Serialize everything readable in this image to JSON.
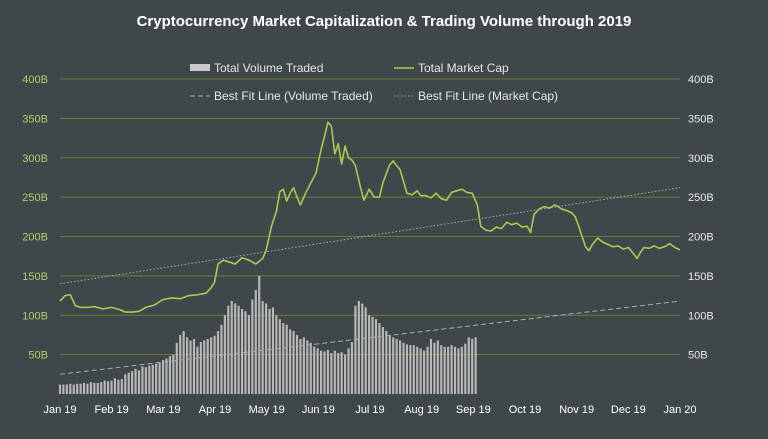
{
  "chart_data": {
    "type": "line",
    "title": "Cryptocurrency Market Capitalization & Trading Volume through 2019",
    "xlabel": "",
    "ylabel": "",
    "ylim": [
      0,
      400
    ],
    "y_unit": "B",
    "grid": true,
    "legend_position": "top",
    "colors": {
      "background": "#40474b",
      "market_cap": "#a6cc4f",
      "volume": "#c9c9c9",
      "best_fit": "#a9aeb2",
      "grid": "#6d7a3a",
      "left_ticks": "#b4cc6a",
      "right_ticks": "#e8e8e8"
    },
    "y_ticks": [
      "50B",
      "100B",
      "150B",
      "200B",
      "250B",
      "300B",
      "350B",
      "400B"
    ],
    "x_ticks": [
      "Jan 19",
      "Feb 19",
      "Mar 19",
      "Apr 19",
      "May 19",
      "Jun 19",
      "Jul 19",
      "Aug 19",
      "Sep 19",
      "Oct 19",
      "Nov 19",
      "Dec 19",
      "Jan 20"
    ],
    "legend": [
      {
        "label": "Total Volume Traded",
        "kind": "bar"
      },
      {
        "label": "Total Market Cap",
        "kind": "line"
      },
      {
        "label": "Best Fit Line (Volume Traded)",
        "kind": "dashed"
      },
      {
        "label": "Best Fit Line (Market Cap)",
        "kind": "dotted"
      }
    ],
    "market_cap": {
      "name": "Total Market Cap",
      "points": [
        [
          0,
          118
        ],
        [
          3,
          125
        ],
        [
          6,
          126
        ],
        [
          9,
          112
        ],
        [
          12,
          110
        ],
        [
          16,
          110
        ],
        [
          20,
          111
        ],
        [
          25,
          108
        ],
        [
          30,
          110
        ],
        [
          35,
          107
        ],
        [
          38,
          104
        ],
        [
          42,
          104
        ],
        [
          46,
          105
        ],
        [
          50,
          110
        ],
        [
          55,
          113
        ],
        [
          60,
          120
        ],
        [
          65,
          122
        ],
        [
          70,
          121
        ],
        [
          75,
          125
        ],
        [
          80,
          126
        ],
        [
          85,
          128
        ],
        [
          88,
          135
        ],
        [
          90,
          142
        ],
        [
          92,
          165
        ],
        [
          95,
          170
        ],
        [
          98,
          168
        ],
        [
          102,
          165
        ],
        [
          106,
          173
        ],
        [
          110,
          170
        ],
        [
          114,
          165
        ],
        [
          118,
          172
        ],
        [
          120,
          182
        ],
        [
          123,
          212
        ],
        [
          126,
          232
        ],
        [
          128,
          257
        ],
        [
          130,
          260
        ],
        [
          132,
          245
        ],
        [
          134,
          255
        ],
        [
          136,
          262
        ],
        [
          138,
          250
        ],
        [
          140,
          240
        ],
        [
          143,
          255
        ],
        [
          146,
          268
        ],
        [
          149,
          280
        ],
        [
          152,
          310
        ],
        [
          154,
          327
        ],
        [
          156,
          345
        ],
        [
          158,
          340
        ],
        [
          160,
          305
        ],
        [
          162,
          318
        ],
        [
          164,
          292
        ],
        [
          166,
          315
        ],
        [
          168,
          300
        ],
        [
          170,
          297
        ],
        [
          172,
          290
        ],
        [
          175,
          262
        ],
        [
          177,
          246
        ],
        [
          180,
          260
        ],
        [
          183,
          250
        ],
        [
          186,
          250
        ],
        [
          188,
          268
        ],
        [
          190,
          280
        ],
        [
          192,
          291
        ],
        [
          194,
          296
        ],
        [
          196,
          290
        ],
        [
          198,
          285
        ],
        [
          200,
          270
        ],
        [
          202,
          255
        ],
        [
          205,
          253
        ],
        [
          208,
          258
        ],
        [
          210,
          252
        ],
        [
          213,
          252
        ],
        [
          216,
          249
        ],
        [
          219,
          255
        ],
        [
          222,
          248
        ],
        [
          225,
          246
        ],
        [
          228,
          256
        ],
        [
          231,
          258
        ],
        [
          234,
          260
        ],
        [
          237,
          256
        ],
        [
          240,
          255
        ],
        [
          243,
          240
        ],
        [
          245,
          213
        ],
        [
          248,
          208
        ],
        [
          251,
          207
        ],
        [
          254,
          212
        ],
        [
          257,
          210
        ],
        [
          260,
          218
        ],
        [
          263,
          215
        ],
        [
          266,
          217
        ],
        [
          269,
          212
        ],
        [
          272,
          213
        ],
        [
          274,
          205
        ],
        [
          276,
          228
        ],
        [
          279,
          235
        ],
        [
          282,
          238
        ],
        [
          285,
          236
        ],
        [
          288,
          240
        ],
        [
          290,
          238
        ],
        [
          292,
          235
        ],
        [
          295,
          233
        ],
        [
          298,
          230
        ],
        [
          300,
          225
        ],
        [
          302,
          213
        ],
        [
          304,
          200
        ],
        [
          306,
          187
        ],
        [
          308,
          182
        ],
        [
          310,
          190
        ],
        [
          313,
          198
        ],
        [
          316,
          193
        ],
        [
          319,
          190
        ],
        [
          322,
          187
        ],
        [
          325,
          188
        ],
        [
          328,
          184
        ],
        [
          331,
          186
        ],
        [
          334,
          178
        ],
        [
          336,
          172
        ],
        [
          338,
          180
        ],
        [
          340,
          186
        ],
        [
          343,
          185
        ],
        [
          346,
          188
        ],
        [
          349,
          185
        ],
        [
          352,
          187
        ],
        [
          355,
          191
        ],
        [
          358,
          186
        ],
        [
          361,
          183
        ]
      ]
    },
    "volume": {
      "name": "Total Volume Traded",
      "start": 0,
      "step": 2,
      "values": [
        12,
        12,
        12,
        13,
        12,
        13,
        13,
        14,
        13,
        15,
        14,
        14,
        15,
        17,
        16,
        17,
        20,
        18,
        19,
        25,
        27,
        29,
        32,
        30,
        35,
        34,
        36,
        37,
        38,
        40,
        43,
        45,
        48,
        50,
        65,
        75,
        80,
        72,
        68,
        70,
        60,
        66,
        68,
        70,
        72,
        74,
        80,
        88,
        100,
        112,
        118,
        115,
        112,
        108,
        105,
        100,
        120,
        132,
        150,
        118,
        115,
        108,
        110,
        100,
        95,
        90,
        88,
        82,
        80,
        75,
        70,
        72,
        68,
        65,
        60,
        58,
        55,
        54,
        56,
        52,
        55,
        52,
        53,
        50,
        58,
        66,
        112,
        118,
        115,
        110,
        100,
        98,
        95,
        90,
        85,
        80,
        75,
        72,
        70,
        68,
        65,
        63,
        62,
        62,
        60,
        58,
        55,
        60,
        70,
        65,
        68,
        62,
        60,
        60,
        62,
        60,
        58,
        60,
        64,
        72,
        70,
        72
      ]
    },
    "volume_fit": {
      "name": "Best Fit Line (Volume Traded)",
      "x": [
        0,
        361
      ],
      "y": [
        25,
        118
      ]
    },
    "market_cap_fit": {
      "name": "Best Fit Line (Market Cap)",
      "x": [
        0,
        361
      ],
      "y": [
        140,
        262
      ]
    }
  }
}
